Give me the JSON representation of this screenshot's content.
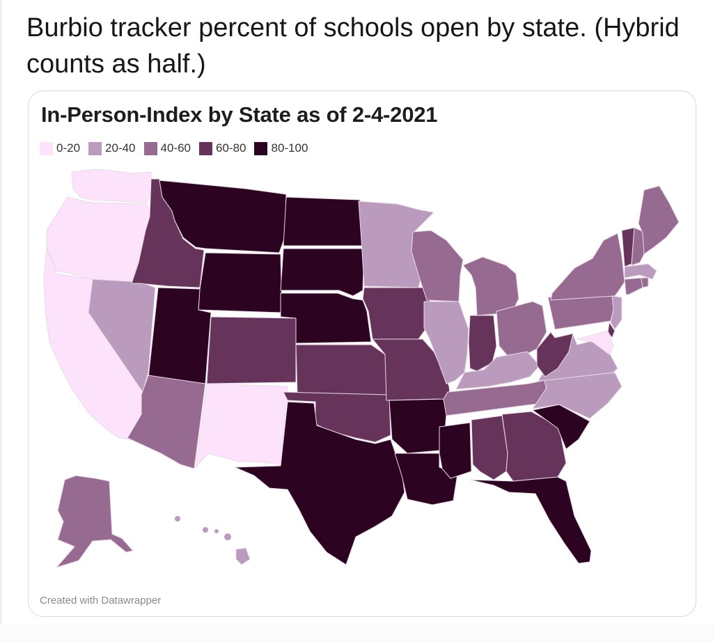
{
  "tweet": {
    "text": "Burbio tracker percent of schools open by state. (Hybrid counts as half.)"
  },
  "colors": {
    "0-20": "#fde2fb",
    "20-40": "#ba9bbd",
    "40-60": "#976b91",
    "60-80": "#66345a",
    "80-100": "#2c0421",
    "border": "#e9dbe6"
  },
  "chart_data": {
    "type": "choropleth",
    "title": "In-Person-Index by State as of 2-4-2021",
    "credit": "Created with Datawrapper",
    "legend": [
      {
        "label": "0-20",
        "key": "0-20"
      },
      {
        "label": "20-40",
        "key": "20-40"
      },
      {
        "label": "40-60",
        "key": "40-60"
      },
      {
        "label": "60-80",
        "key": "60-80"
      },
      {
        "label": "80-100",
        "key": "80-100"
      }
    ],
    "states": {
      "WA": "0-20",
      "OR": "0-20",
      "CA": "0-20",
      "NM": "0-20",
      "MD": "0-20",
      "DE": "60-80",
      "NV": "20-40",
      "MN": "20-40",
      "IL": "20-40",
      "KY": "20-40",
      "VA": "20-40",
      "NC": "20-40",
      "NJ": "20-40",
      "MA": "20-40",
      "HI": "20-40",
      "AZ": "40-60",
      "WI": "40-60",
      "MI": "40-60",
      "OH": "40-60",
      "PA": "40-60",
      "NY": "40-60",
      "ME": "40-60",
      "NH": "40-60",
      "CT": "40-60",
      "RI": "40-60",
      "TN": "40-60",
      "AK": "40-60",
      "ID": "60-80",
      "CO": "60-80",
      "KS": "60-80",
      "OK": "60-80",
      "IA": "60-80",
      "MO": "60-80",
      "IN": "60-80",
      "WV": "60-80",
      "AL": "60-80",
      "GA": "60-80",
      "VT": "60-80",
      "MT": "80-100",
      "WY": "80-100",
      "UT": "80-100",
      "ND": "80-100",
      "SD": "80-100",
      "NE": "80-100",
      "TX": "80-100",
      "AR": "80-100",
      "LA": "80-100",
      "MS": "80-100",
      "FL": "80-100",
      "SC": "80-100"
    }
  }
}
